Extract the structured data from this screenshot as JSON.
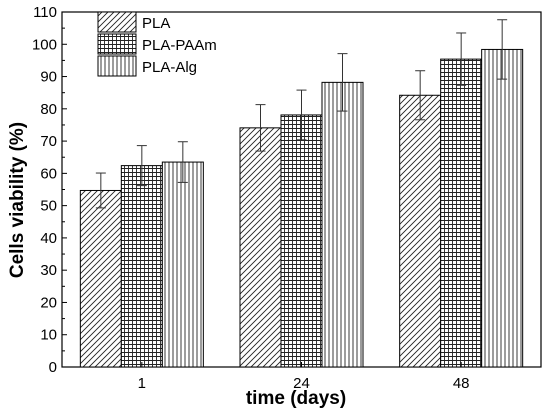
{
  "chart_data": {
    "type": "bar",
    "categories": [
      "1",
      "24",
      "48"
    ],
    "series": [
      {
        "name": "PLA",
        "values": [
          54.7,
          74.1,
          84.2
        ],
        "errors": [
          5.4,
          7.2,
          7.6
        ],
        "pattern": "diagonal-hatch"
      },
      {
        "name": "PLA-PAAm",
        "values": [
          62.4,
          78.1,
          95.4
        ],
        "errors": [
          6.2,
          7.7,
          8.1
        ],
        "pattern": "crosshatch-grid"
      },
      {
        "name": "PLA-Alg",
        "values": [
          63.5,
          88.2,
          98.4
        ],
        "errors": [
          6.3,
          8.9,
          9.2
        ],
        "pattern": "vertical-lines"
      }
    ],
    "xlabel": "time (days)",
    "ylabel": "Cells viability (%)",
    "ylim": [
      0,
      110
    ],
    "yticks": [
      "0",
      "10",
      "20",
      "30",
      "40",
      "50",
      "60",
      "70",
      "80",
      "90",
      "100",
      "110"
    ],
    "grid": false,
    "legend_position": "top-left"
  }
}
